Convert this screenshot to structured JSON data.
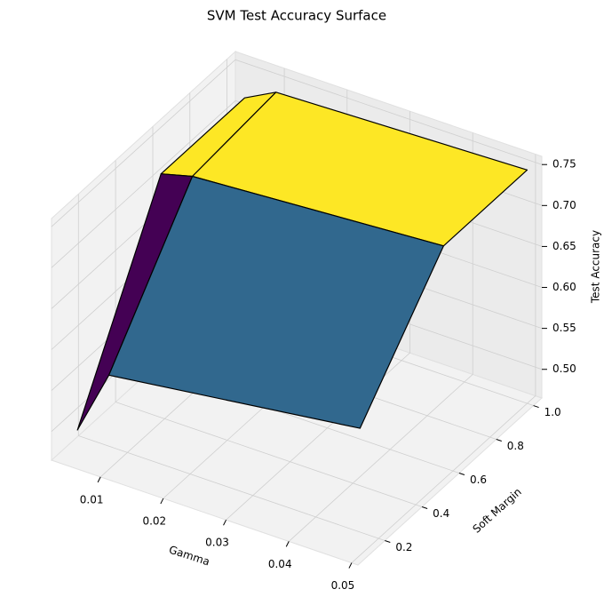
{
  "chart_data": {
    "type": "surface",
    "title": "SVM Test Accuracy Surface",
    "xlabel": "Gamma",
    "ylabel": "Soft Margin",
    "zlabel": "Test Accuracy",
    "x": [
      0.005,
      0.01,
      0.05
    ],
    "y": [
      0.1,
      0.55,
      1.0
    ],
    "z": [
      [
        0.5,
        0.58,
        0.62
      ],
      [
        0.72,
        0.73,
        0.75
      ],
      [
        0.72,
        0.74,
        0.75
      ]
    ],
    "facecolors": [
      [
        "#440154",
        "#31688e"
      ],
      [
        "#fde725",
        "#fde725"
      ]
    ],
    "edgecolor": "#000000",
    "xlim": [
      0.0022,
      0.051
    ],
    "ylim": [
      0.055,
      1.045
    ],
    "zlim": [
      0.465,
      0.76
    ],
    "xticks": [
      0.01,
      0.02,
      0.03,
      0.04,
      0.05
    ],
    "yticks": [
      0.2,
      0.4,
      0.6,
      0.8,
      {
        "value": 1.0,
        "label": "1.0"
      }
    ],
    "zticks": [
      {
        "value": 0.5,
        "label": "0.50"
      },
      0.55,
      {
        "value": 0.6,
        "label": "0.60"
      },
      0.65,
      {
        "value": 0.7,
        "label": "0.70"
      },
      0.75
    ],
    "grid": true
  }
}
